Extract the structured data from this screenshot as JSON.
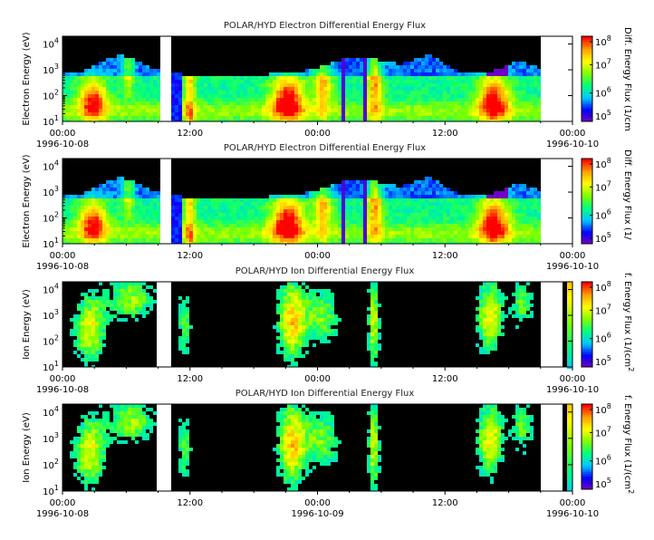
{
  "x_tick_labels": [
    "00:00",
    "12:00",
    "00:00",
    "12:00",
    "00:00"
  ],
  "x_date_labels": [
    "1996-10-08",
    "1996-10-09",
    "1996-10-10"
  ],
  "colors": {
    "scale": [
      "#8000c0",
      "#0000ff",
      "#00c8ff",
      "#00ff80",
      "#80ff00",
      "#ffff00",
      "#ffa000",
      "#ff0000"
    ],
    "background": "#000000"
  },
  "chart_data": [
    {
      "type": "heatmap",
      "title": "POLAR/HYD  Electron Differential Energy Flux",
      "ylabel": "Electron Energy (eV)",
      "zlabel": "Diff. Energy Flux (1/cm",
      "yscale": "log",
      "y_tick_labels": [
        "10^4",
        "10^3",
        "10^2",
        "10^1"
      ],
      "z_tick_labels": [
        "10^8",
        "10^7",
        "10^6",
        "10^5"
      ],
      "x_tick_labels": [
        "00:00",
        "12:00",
        "00:00",
        "12:00",
        "00:00"
      ],
      "x_date_labels": [
        "1996-10-08",
        "",
        "1996-10-10"
      ],
      "xlim_hours": [
        0,
        48
      ],
      "ylim_eV": [
        10,
        20000
      ],
      "zlim": [
        100000,
        100000000
      ],
      "data_gaps_hours": [
        [
          9.2,
          10.4
        ],
        [
          44.9,
          48
        ]
      ]
    },
    {
      "type": "heatmap",
      "title": "POLAR/HYD  Electron Differential Energy Flux",
      "ylabel": "Electron Energy (eV)",
      "zlabel": "Diff. Energy Flux (1/",
      "yscale": "log",
      "y_tick_labels": [
        "10^4",
        "10^3",
        "10^2",
        "10^1"
      ],
      "z_tick_labels": [
        "10^8",
        "10^7",
        "10^6",
        "10^5"
      ],
      "x_tick_labels": [
        "00:00",
        "12:00",
        "00:00",
        "12:00",
        "00:00"
      ],
      "x_date_labels": [
        "1996-10-08",
        "",
        "1996-10-10"
      ],
      "xlim_hours": [
        0,
        48
      ],
      "ylim_eV": [
        10,
        20000
      ],
      "zlim": [
        100000,
        100000000
      ],
      "data_gaps_hours": [
        [
          9.2,
          10.4
        ],
        [
          44.9,
          48
        ]
      ]
    },
    {
      "type": "heatmap",
      "title": "POLAR/HYD  Ion Differential Energy Flux",
      "ylabel": "Ion Energy (eV)",
      "zlabel": "f. Energy Flux (1/(cm^",
      "yscale": "log",
      "y_tick_labels": [
        "10^4",
        "10^3",
        "10^2",
        "10^1"
      ],
      "z_tick_labels": [
        "10^8",
        "10^7",
        "10^6",
        "10^5"
      ],
      "x_tick_labels": [
        "00:00",
        "12:00",
        "00:00",
        "12:00",
        "00:00"
      ],
      "x_date_labels": [
        "1996-10-08",
        "",
        "1996-10-10"
      ],
      "xlim_hours": [
        0,
        48
      ],
      "ylim_eV": [
        10,
        20000
      ],
      "zlim": [
        100000,
        100000000
      ],
      "data_gaps_hours": [
        [
          8.9,
          10.4
        ],
        [
          44.9,
          47.2
        ]
      ]
    },
    {
      "type": "heatmap",
      "title": "POLAR/HYD  Ion Differential Energy Flux",
      "ylabel": "Ion Energy (eV)",
      "zlabel": "f. Energy Flux (1/(cm^",
      "yscale": "log",
      "y_tick_labels": [
        "10^4",
        "10^3",
        "10^2",
        "10^1"
      ],
      "z_tick_labels": [
        "10^8",
        "10^7",
        "10^6",
        "10^5"
      ],
      "x_tick_labels": [
        "00:00",
        "12:00",
        "00:00",
        "12:00",
        "00:00"
      ],
      "x_date_labels": [
        "1996-10-08",
        "1996-10-09",
        "1996-10-10"
      ],
      "xlim_hours": [
        0,
        48
      ],
      "ylim_eV": [
        10,
        20000
      ],
      "zlim": [
        100000,
        100000000
      ],
      "data_gaps_hours": [
        [
          8.9,
          10.4
        ],
        [
          44.9,
          47.2
        ]
      ]
    }
  ]
}
